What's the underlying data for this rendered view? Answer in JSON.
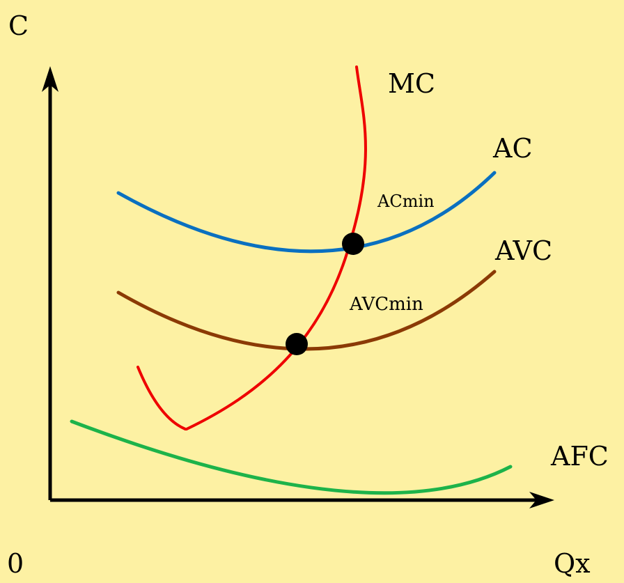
{
  "axes": {
    "y_label": "C",
    "x_label": "Qx",
    "origin_label": "0"
  },
  "curves": {
    "mc": {
      "label": "MC",
      "color": "#ee0000"
    },
    "ac": {
      "label": "AC",
      "color": "#0a70c0"
    },
    "avc": {
      "label": "AVC",
      "color": "#8b3a05"
    },
    "afc": {
      "label": "AFC",
      "color": "#1db34a"
    }
  },
  "points": {
    "ac_min": {
      "label": "ACmin"
    },
    "avc_min": {
      "label": "AVCmin"
    }
  },
  "colors": {
    "background": "#fdf1a3",
    "axis": "#000000",
    "point": "#000000"
  }
}
